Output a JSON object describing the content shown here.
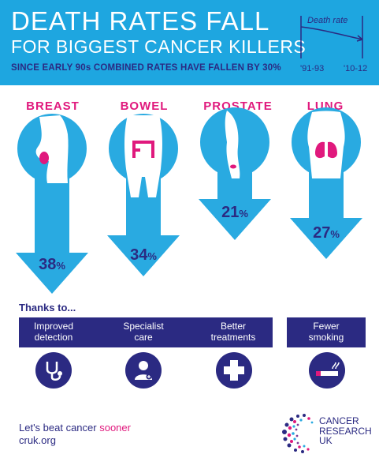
{
  "header": {
    "title_line1": "DEATH RATES FALL",
    "title_line2": "FOR BIGGEST CANCER KILLERS",
    "subtitle": "SINCE EARLY 90s COMBINED RATES HAVE FALLEN BY 30%",
    "mini_chart": {
      "label": "Death rate",
      "start_label": "'91-93",
      "end_label": "'10-12"
    }
  },
  "cancers": [
    {
      "name": "BREAST",
      "fall_value": "38",
      "fall_unit": "%"
    },
    {
      "name": "BOWEL",
      "fall_value": "34",
      "fall_unit": "%"
    },
    {
      "name": "PROSTATE",
      "fall_value": "21",
      "fall_unit": "%"
    },
    {
      "name": "LUNG",
      "fall_value": "27",
      "fall_unit": "%"
    }
  ],
  "thanks": {
    "heading": "Thanks to...",
    "reasons": [
      {
        "line1": "Improved",
        "line2": "detection",
        "icon": "stethoscope-icon"
      },
      {
        "line1": "Specialist",
        "line2": "care",
        "icon": "doctor-icon"
      },
      {
        "line1": "Better",
        "line2": "treatments",
        "icon": "medical-cross-icon"
      },
      {
        "line1": "Fewer",
        "line2": "smoking",
        "icon": "cigarette-icon"
      }
    ]
  },
  "footer": {
    "slogan_prefix": "Let's beat cancer ",
    "slogan_highlight": "sooner",
    "url": "cruk.org"
  },
  "logo": {
    "line1": "CANCER",
    "line2": "RESEARCH",
    "line3": "UK"
  },
  "colors": {
    "header_blue": "#1ea6e0",
    "arrow_blue": "#29aae1",
    "navy": "#2b2a82",
    "pink": "#e0197d"
  }
}
